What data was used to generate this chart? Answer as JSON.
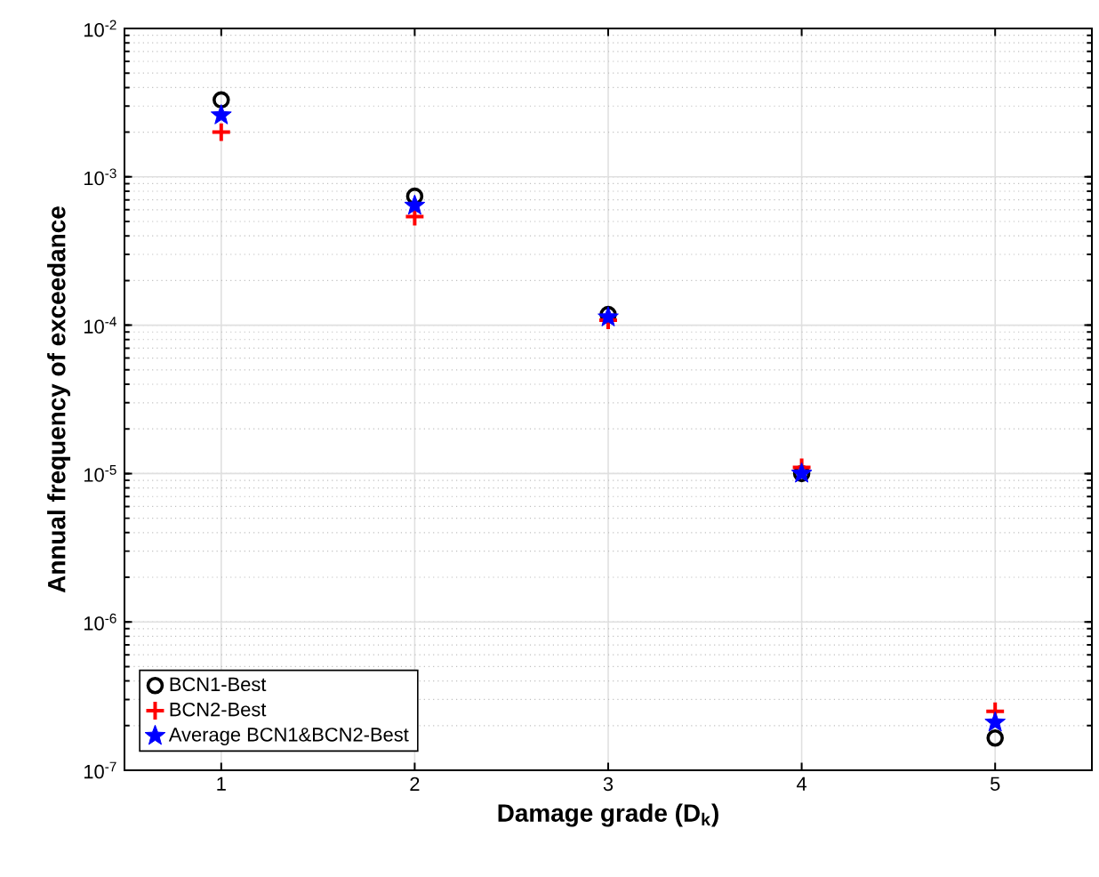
{
  "chart_data": {
    "type": "scatter",
    "xlabel": "Damage grade (D$_{k}$)",
    "ylabel": "Annual frequency of exceedance",
    "x": [
      1,
      2,
      3,
      4,
      5
    ],
    "series": [
      {
        "name": "BCN1-Best",
        "color": "#000000",
        "marker": "circle",
        "values": [
          0.0033,
          0.00074,
          0.000118,
          1e-05,
          1.65e-07
        ]
      },
      {
        "name": "BCN2-Best",
        "color": "#ff0000",
        "marker": "cross",
        "values": [
          0.002,
          0.00054,
          0.000108,
          1.1e-05,
          2.5e-07
        ]
      },
      {
        "name": "Average BCN1&BCN2-Best",
        "color": "#0000ff",
        "marker": "star",
        "values": [
          0.0026,
          0.00064,
          0.000113,
          1e-05,
          2.1e-07
        ]
      }
    ],
    "xlim": [
      0.5,
      5.5
    ],
    "xticks": [
      1,
      2,
      3,
      4,
      5
    ],
    "ylim": [
      1e-07,
      0.01
    ],
    "yticks": [
      {
        "value": 1e-07,
        "label": "10$^{-7}$"
      },
      {
        "value": 1e-06,
        "label": "10$^{-6}$"
      },
      {
        "value": 1e-05,
        "label": "10$^{-5}$"
      },
      {
        "value": 0.0001,
        "label": "10$^{-4}$"
      },
      {
        "value": 0.001,
        "label": "10$^{-3}$"
      },
      {
        "value": 0.01,
        "label": "10$^{-2}$"
      }
    ],
    "log": "y",
    "grid": true,
    "legend": "bottom left"
  }
}
